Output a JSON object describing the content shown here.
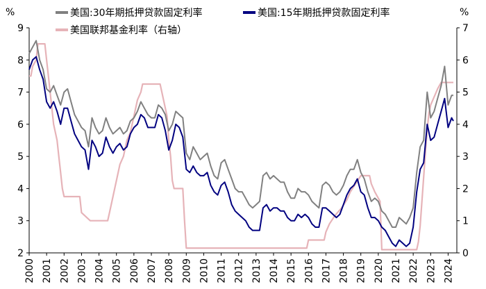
{
  "chart_data": {
    "type": "line",
    "title": "",
    "ylabel_left": "%",
    "ylabel_right": "%",
    "ylim_left": [
      2,
      9
    ],
    "ylim_right": [
      0,
      7
    ],
    "yticks_left": [
      "2",
      "3",
      "4",
      "5",
      "6",
      "7",
      "8",
      "9"
    ],
    "yticks_right": [
      "0",
      "1",
      "2",
      "3",
      "4",
      "5",
      "6",
      "7"
    ],
    "xlim": [
      2000,
      2024.5
    ],
    "xticks": [
      "2000",
      "2001",
      "2002",
      "2003",
      "2004",
      "2005",
      "2006",
      "2007",
      "2008",
      "2009",
      "2010",
      "2011",
      "2012",
      "2013",
      "2014",
      "2015",
      "2016",
      "2017",
      "2018",
      "2019",
      "2020",
      "2021",
      "2022",
      "2023",
      "2024"
    ],
    "grid": false,
    "legend_position": "top",
    "series": [
      {
        "name": "美国:30年期抵押贷款固定利率",
        "axis": "left",
        "color": "#808080",
        "x": [
          2000.0,
          2000.2,
          2000.4,
          2000.6,
          2000.8,
          2001.0,
          2001.2,
          2001.4,
          2001.6,
          2001.8,
          2002.0,
          2002.2,
          2002.4,
          2002.6,
          2002.8,
          2003.0,
          2003.2,
          2003.4,
          2003.6,
          2003.8,
          2004.0,
          2004.2,
          2004.4,
          2004.6,
          2004.8,
          2005.0,
          2005.2,
          2005.4,
          2005.6,
          2005.8,
          2006.0,
          2006.2,
          2006.4,
          2006.6,
          2006.8,
          2007.0,
          2007.2,
          2007.4,
          2007.6,
          2007.8,
          2008.0,
          2008.2,
          2008.4,
          2008.6,
          2008.8,
          2009.0,
          2009.2,
          2009.4,
          2009.6,
          2009.8,
          2010.0,
          2010.2,
          2010.4,
          2010.6,
          2010.8,
          2011.0,
          2011.2,
          2011.4,
          2011.6,
          2011.8,
          2012.0,
          2012.2,
          2012.4,
          2012.6,
          2012.8,
          2013.0,
          2013.2,
          2013.4,
          2013.6,
          2013.8,
          2014.0,
          2014.2,
          2014.4,
          2014.6,
          2014.8,
          2015.0,
          2015.2,
          2015.4,
          2015.6,
          2015.8,
          2016.0,
          2016.2,
          2016.4,
          2016.6,
          2016.8,
          2017.0,
          2017.2,
          2017.4,
          2017.6,
          2017.8,
          2018.0,
          2018.2,
          2018.4,
          2018.6,
          2018.8,
          2019.0,
          2019.2,
          2019.4,
          2019.6,
          2019.8,
          2020.0,
          2020.2,
          2020.4,
          2020.6,
          2020.8,
          2021.0,
          2021.2,
          2021.4,
          2021.6,
          2021.8,
          2022.0,
          2022.2,
          2022.4,
          2022.6,
          2022.8,
          2023.0,
          2023.2,
          2023.4,
          2023.6,
          2023.8,
          2024.0,
          2024.2,
          2024.3
        ],
        "values": [
          8.2,
          8.4,
          8.6,
          8.0,
          7.7,
          7.1,
          7.0,
          7.2,
          6.9,
          6.6,
          7.0,
          7.1,
          6.7,
          6.3,
          6.1,
          5.9,
          5.8,
          5.3,
          6.2,
          5.9,
          5.7,
          5.8,
          6.2,
          5.9,
          5.7,
          5.8,
          5.9,
          5.7,
          5.8,
          6.1,
          6.2,
          6.4,
          6.7,
          6.5,
          6.3,
          6.2,
          6.2,
          6.6,
          6.5,
          6.3,
          5.8,
          6.0,
          6.4,
          6.3,
          6.2,
          5.1,
          4.9,
          5.3,
          5.1,
          4.9,
          5.0,
          5.1,
          4.7,
          4.4,
          4.3,
          4.8,
          4.9,
          4.6,
          4.3,
          4.0,
          3.9,
          3.9,
          3.7,
          3.5,
          3.4,
          3.5,
          3.6,
          4.4,
          4.5,
          4.3,
          4.4,
          4.3,
          4.2,
          4.2,
          3.9,
          3.7,
          3.7,
          4.0,
          3.9,
          3.9,
          3.8,
          3.6,
          3.5,
          3.4,
          4.1,
          4.2,
          4.1,
          3.9,
          3.8,
          3.9,
          4.1,
          4.4,
          4.6,
          4.6,
          4.9,
          4.5,
          4.3,
          3.9,
          3.6,
          3.7,
          3.6,
          3.3,
          3.2,
          3.0,
          2.8,
          2.8,
          3.1,
          3.0,
          2.9,
          3.1,
          3.4,
          4.5,
          5.3,
          5.5,
          7.0,
          6.2,
          6.4,
          6.8,
          7.2,
          7.8,
          6.6,
          6.9,
          6.9
        ]
      },
      {
        "name": "美国:15年期抵押贷款固定利率",
        "axis": "left",
        "color": "#000080",
        "x": [
          2000.0,
          2000.2,
          2000.4,
          2000.6,
          2000.8,
          2001.0,
          2001.2,
          2001.4,
          2001.6,
          2001.8,
          2002.0,
          2002.2,
          2002.4,
          2002.6,
          2002.8,
          2003.0,
          2003.2,
          2003.4,
          2003.6,
          2003.8,
          2004.0,
          2004.2,
          2004.4,
          2004.6,
          2004.8,
          2005.0,
          2005.2,
          2005.4,
          2005.6,
          2005.8,
          2006.0,
          2006.2,
          2006.4,
          2006.6,
          2006.8,
          2007.0,
          2007.2,
          2007.4,
          2007.6,
          2007.8,
          2008.0,
          2008.2,
          2008.4,
          2008.6,
          2008.8,
          2009.0,
          2009.2,
          2009.4,
          2009.6,
          2009.8,
          2010.0,
          2010.2,
          2010.4,
          2010.6,
          2010.8,
          2011.0,
          2011.2,
          2011.4,
          2011.6,
          2011.8,
          2012.0,
          2012.2,
          2012.4,
          2012.6,
          2012.8,
          2013.0,
          2013.2,
          2013.4,
          2013.6,
          2013.8,
          2014.0,
          2014.2,
          2014.4,
          2014.6,
          2014.8,
          2015.0,
          2015.2,
          2015.4,
          2015.6,
          2015.8,
          2016.0,
          2016.2,
          2016.4,
          2016.6,
          2016.8,
          2017.0,
          2017.2,
          2017.4,
          2017.6,
          2017.8,
          2018.0,
          2018.2,
          2018.4,
          2018.6,
          2018.8,
          2019.0,
          2019.2,
          2019.4,
          2019.6,
          2019.8,
          2020.0,
          2020.2,
          2020.4,
          2020.6,
          2020.8,
          2021.0,
          2021.2,
          2021.4,
          2021.6,
          2021.8,
          2022.0,
          2022.2,
          2022.4,
          2022.6,
          2022.8,
          2023.0,
          2023.2,
          2023.4,
          2023.6,
          2023.8,
          2024.0,
          2024.2,
          2024.3
        ],
        "values": [
          7.7,
          8.0,
          8.1,
          7.7,
          7.4,
          6.7,
          6.5,
          6.7,
          6.4,
          6.0,
          6.5,
          6.5,
          6.1,
          5.7,
          5.5,
          5.3,
          5.2,
          4.6,
          5.5,
          5.3,
          5.0,
          5.1,
          5.6,
          5.3,
          5.1,
          5.3,
          5.4,
          5.2,
          5.3,
          5.7,
          5.9,
          6.0,
          6.3,
          6.2,
          5.9,
          5.9,
          5.9,
          6.3,
          6.2,
          5.8,
          5.2,
          5.5,
          6.0,
          5.9,
          5.6,
          4.6,
          4.5,
          4.7,
          4.5,
          4.4,
          4.4,
          4.5,
          4.1,
          3.9,
          3.8,
          4.1,
          4.2,
          3.9,
          3.5,
          3.3,
          3.2,
          3.1,
          3.0,
          2.8,
          2.7,
          2.7,
          2.7,
          3.4,
          3.5,
          3.3,
          3.4,
          3.4,
          3.3,
          3.3,
          3.1,
          3.0,
          3.0,
          3.2,
          3.1,
          3.2,
          3.1,
          2.9,
          2.8,
          2.8,
          3.4,
          3.4,
          3.3,
          3.2,
          3.1,
          3.2,
          3.5,
          3.8,
          4.0,
          4.1,
          4.3,
          3.9,
          3.8,
          3.4,
          3.1,
          3.1,
          3.0,
          2.8,
          2.7,
          2.5,
          2.3,
          2.2,
          2.4,
          2.3,
          2.2,
          2.3,
          2.8,
          3.9,
          4.6,
          4.8,
          6.0,
          5.5,
          5.6,
          6.0,
          6.4,
          6.8,
          5.9,
          6.2,
          6.1
        ]
      },
      {
        "name": "美国联邦基金利率（右轴）",
        "axis": "right",
        "color": "#e6b3b8",
        "x": [
          2000.0,
          2000.1,
          2000.2,
          2000.4,
          2000.5,
          2000.9,
          2001.0,
          2001.1,
          2001.2,
          2001.3,
          2001.4,
          2001.5,
          2001.6,
          2001.7,
          2001.8,
          2001.9,
          2002.0,
          2002.9,
          2003.0,
          2003.5,
          2004.0,
          2004.5,
          2004.6,
          2004.7,
          2004.8,
          2004.9,
          2005.0,
          2005.2,
          2005.4,
          2005.6,
          2005.8,
          2006.0,
          2006.2,
          2006.4,
          2006.5,
          2007.0,
          2007.5,
          2007.7,
          2007.8,
          2007.9,
          2008.0,
          2008.1,
          2008.2,
          2008.3,
          2008.8,
          2008.9,
          2009.0,
          2015.9,
          2016.0,
          2016.9,
          2017.0,
          2017.2,
          2017.5,
          2017.9,
          2018.2,
          2018.4,
          2018.7,
          2019.0,
          2019.5,
          2019.6,
          2019.8,
          2020.1,
          2020.2,
          2022.2,
          2022.3,
          2022.4,
          2022.5,
          2022.6,
          2022.7,
          2022.8,
          2022.9,
          2023.0,
          2023.2,
          2023.4,
          2023.6,
          2024.3
        ],
        "values": [
          5.5,
          5.5,
          5.8,
          6.0,
          6.5,
          6.5,
          6.0,
          5.5,
          5.0,
          4.5,
          4.0,
          3.75,
          3.5,
          3.0,
          2.5,
          2.0,
          1.75,
          1.75,
          1.25,
          1.0,
          1.0,
          1.0,
          1.25,
          1.5,
          1.75,
          2.0,
          2.25,
          2.75,
          3.0,
          3.5,
          3.75,
          4.25,
          4.75,
          5.0,
          5.25,
          5.25,
          5.25,
          4.75,
          4.5,
          4.25,
          3.5,
          3.0,
          2.25,
          2.0,
          2.0,
          1.0,
          0.15,
          0.15,
          0.4,
          0.4,
          0.65,
          0.9,
          1.15,
          1.4,
          1.65,
          1.9,
          2.15,
          2.4,
          2.4,
          2.15,
          1.9,
          1.6,
          0.1,
          0.1,
          0.35,
          0.85,
          1.6,
          2.35,
          3.1,
          3.85,
          4.35,
          4.6,
          4.85,
          5.1,
          5.3,
          5.3
        ]
      }
    ]
  }
}
